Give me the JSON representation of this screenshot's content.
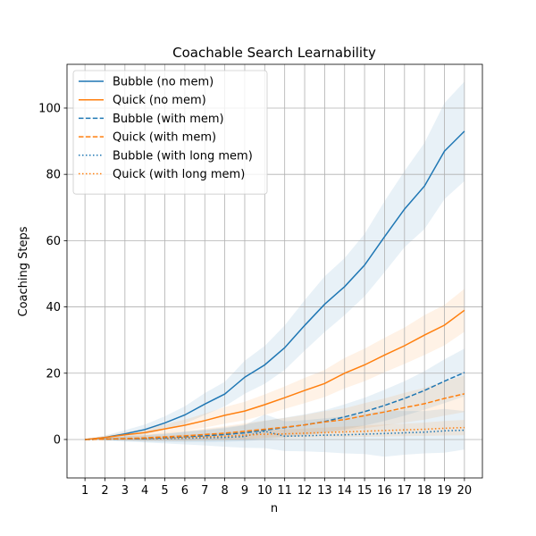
{
  "chart_data": {
    "type": "line",
    "title": "Coachable Search Learnability",
    "xlabel": "n",
    "ylabel": "Coaching Steps",
    "x": [
      1,
      2,
      3,
      4,
      5,
      6,
      7,
      8,
      9,
      10,
      11,
      12,
      13,
      14,
      15,
      16,
      17,
      18,
      19,
      20
    ],
    "xlim": [
      0.1,
      20.9
    ],
    "ylim": [
      -11.6,
      113.2
    ],
    "yticks": [
      0,
      20,
      40,
      60,
      80,
      100
    ],
    "grid": true,
    "legend_position": "top-left",
    "series": [
      {
        "name": "Bubble (no mem)",
        "color": "#1f77b4",
        "style": "solid",
        "values": [
          0.0,
          0.6,
          1.7,
          3.0,
          5.0,
          7.4,
          10.7,
          13.7,
          18.8,
          22.5,
          27.7,
          34.4,
          40.8,
          46.1,
          52.6,
          61.2,
          69.5,
          76.5,
          87.0,
          93.0
        ],
        "lower": [
          0.0,
          0.0,
          0.6,
          1.5,
          3.0,
          4.8,
          7.4,
          10.0,
          13.8,
          16.8,
          21.0,
          26.8,
          32.4,
          37.5,
          43.2,
          50.5,
          58.0,
          63.5,
          72.5,
          78.0
        ],
        "upper": [
          0.0,
          1.2,
          2.8,
          4.5,
          7.0,
          10.0,
          14.0,
          17.4,
          23.8,
          28.2,
          34.4,
          42.0,
          49.2,
          54.7,
          62.0,
          71.9,
          81.0,
          89.5,
          101.5,
          108.0
        ]
      },
      {
        "name": "Quick (no mem)",
        "color": "#ff7f0e",
        "style": "solid",
        "values": [
          0.0,
          0.6,
          1.4,
          2.1,
          3.2,
          4.3,
          5.7,
          7.3,
          8.6,
          10.5,
          12.6,
          14.8,
          16.9,
          20.0,
          22.5,
          25.5,
          28.3,
          31.5,
          34.5,
          39.0
        ],
        "lower": [
          0.0,
          0.1,
          0.6,
          1.0,
          1.8,
          2.6,
          3.6,
          4.8,
          5.8,
          7.4,
          9.2,
          11.0,
          12.8,
          15.4,
          17.6,
          20.3,
          22.8,
          25.5,
          28.4,
          32.5
        ],
        "upper": [
          0.0,
          1.1,
          2.2,
          3.2,
          4.6,
          6.0,
          7.8,
          9.8,
          11.4,
          13.6,
          16.0,
          18.6,
          21.0,
          24.6,
          27.4,
          30.7,
          33.8,
          37.5,
          40.6,
          45.5
        ]
      },
      {
        "name": "Bubble (with mem)",
        "color": "#1f77b4",
        "style": "dashed",
        "values": [
          0.0,
          0.1,
          0.2,
          0.3,
          0.5,
          0.8,
          1.1,
          1.5,
          2.0,
          2.8,
          3.6,
          4.4,
          5.4,
          6.8,
          8.4,
          10.3,
          12.4,
          14.8,
          17.6,
          20.2
        ],
        "lower": [
          0.0,
          -0.2,
          -0.4,
          -0.6,
          -0.7,
          -0.8,
          -0.8,
          -0.7,
          -0.5,
          0.0,
          0.6,
          1.2,
          2.0,
          3.0,
          4.2,
          5.6,
          7.2,
          9.0,
          11.0,
          13.0
        ],
        "upper": [
          0.0,
          0.4,
          0.8,
          1.2,
          1.7,
          2.4,
          3.0,
          3.7,
          4.5,
          5.6,
          6.6,
          7.6,
          8.8,
          10.6,
          12.6,
          15.0,
          17.6,
          20.6,
          24.2,
          27.4
        ]
      },
      {
        "name": "Quick (with mem)",
        "color": "#ff7f0e",
        "style": "dashed",
        "values": [
          0.0,
          0.1,
          0.3,
          0.5,
          0.8,
          1.1,
          1.5,
          1.9,
          2.5,
          3.1,
          3.7,
          4.4,
          5.3,
          6.0,
          7.2,
          8.3,
          9.6,
          10.8,
          12.4,
          13.8
        ],
        "lower": [
          0.0,
          -0.2,
          -0.3,
          -0.4,
          -0.4,
          -0.4,
          -0.3,
          -0.2,
          0.1,
          0.5,
          0.9,
          1.4,
          2.0,
          2.6,
          3.4,
          4.2,
          5.1,
          6.0,
          7.2,
          8.3
        ],
        "upper": [
          0.0,
          0.4,
          0.9,
          1.4,
          2.0,
          2.6,
          3.3,
          4.0,
          4.9,
          5.7,
          6.5,
          7.4,
          8.6,
          9.4,
          11.0,
          12.4,
          14.1,
          15.6,
          17.6,
          19.3
        ]
      },
      {
        "name": "Bubble (with long mem)",
        "color": "#1f77b4",
        "style": "dotted",
        "values": [
          0.0,
          0.1,
          0.2,
          0.2,
          0.3,
          0.4,
          0.5,
          0.6,
          0.9,
          2.5,
          1.0,
          1.1,
          1.3,
          1.4,
          1.6,
          1.8,
          2.0,
          2.2,
          2.6,
          2.8
        ],
        "lower": [
          0.0,
          -0.3,
          -0.6,
          -0.9,
          -1.2,
          -1.5,
          -1.8,
          -2.2,
          -2.5,
          -2.6,
          -3.5,
          -3.6,
          -3.8,
          -4.2,
          -4.4,
          -5.2,
          -4.6,
          -4.2,
          -4.0,
          -3.0
        ],
        "upper": [
          0.0,
          0.5,
          1.0,
          1.3,
          1.8,
          2.3,
          2.8,
          3.4,
          4.3,
          7.6,
          5.5,
          5.8,
          6.4,
          7.0,
          7.6,
          8.8,
          8.6,
          8.6,
          9.2,
          8.6
        ]
      },
      {
        "name": "Quick (with long mem)",
        "color": "#ff7f0e",
        "style": "dotted",
        "values": [
          0.0,
          0.1,
          0.2,
          0.3,
          0.4,
          0.6,
          0.8,
          1.0,
          1.3,
          1.6,
          1.7,
          1.9,
          2.1,
          2.3,
          2.5,
          2.7,
          2.9,
          3.1,
          3.4,
          3.6
        ],
        "lower": [
          0.0,
          -0.1,
          -0.2,
          -0.3,
          -0.3,
          -0.3,
          -0.2,
          -0.1,
          0.1,
          0.3,
          0.4,
          0.5,
          0.6,
          0.7,
          0.8,
          0.9,
          1.0,
          1.1,
          1.2,
          1.3
        ],
        "upper": [
          0.0,
          0.3,
          0.6,
          0.9,
          1.1,
          1.5,
          1.8,
          2.1,
          2.5,
          2.9,
          3.0,
          3.3,
          3.6,
          3.9,
          4.2,
          4.5,
          4.8,
          5.1,
          5.6,
          5.9
        ]
      }
    ]
  }
}
